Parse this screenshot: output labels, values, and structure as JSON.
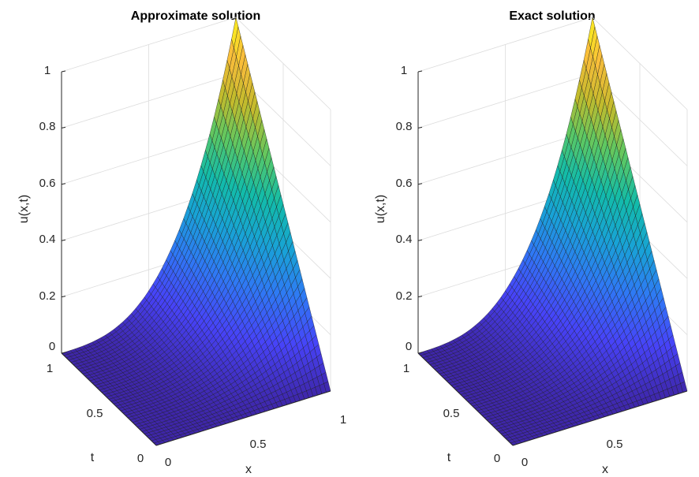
{
  "figure": {
    "background": "#ffffff",
    "colormap": "parula",
    "colormap_stops": [
      "#3e26a8",
      "#4743f8",
      "#2f79f5",
      "#18a3d6",
      "#12bca9",
      "#5cc863",
      "#c3bb2c",
      "#f9bc3b",
      "#f9fb15"
    ]
  },
  "chart_data": [
    {
      "type": "surface",
      "title": "Approximate solution",
      "xlabel": "x",
      "ylabel": "t",
      "zlabel": "u(x,t)",
      "xlim": [
        0,
        1
      ],
      "ylim": [
        0,
        1
      ],
      "zlim": [
        0,
        1
      ],
      "x_ticks": [
        "0",
        "0.5",
        "1"
      ],
      "y_ticks": [
        "0",
        "0.5",
        "1"
      ],
      "z_ticks": [
        "0",
        "0.2",
        "0.4",
        "0.6",
        "0.8",
        "1"
      ],
      "grid": true,
      "function": "u(x,t) = t * x^3",
      "grid_size": [
        41,
        41
      ],
      "z_max": 1
    },
    {
      "type": "surface",
      "title": "Exact solution",
      "xlabel": "x",
      "ylabel": "t",
      "zlabel": "u(x,t)",
      "xlim": [
        0,
        1
      ],
      "ylim": [
        0,
        1
      ],
      "zlim": [
        0,
        1
      ],
      "x_ticks": [
        "0",
        "0.5",
        ""
      ],
      "y_ticks": [
        "0",
        "0.5",
        "1"
      ],
      "z_ticks": [
        "0",
        "0.2",
        "0.4",
        "0.6",
        "0.8",
        "1"
      ],
      "grid": true,
      "function": "u(x,t) = t * x^3",
      "grid_size": [
        41,
        41
      ],
      "z_max": 1
    }
  ]
}
